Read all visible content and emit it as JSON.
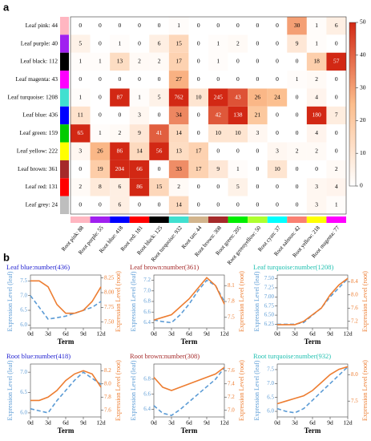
{
  "panel_labels": [
    "a",
    "b"
  ],
  "chart_data": [
    {
      "type": "heatmap",
      "rows": [
        "Leaf pink: 44",
        "Leaf purple: 40",
        "Leaf black: 112",
        "Leaf magenta: 43",
        "Leaf turquoise: 1208",
        "Leaf blue: 436",
        "Leaf green: 159",
        "Leaf yellow: 222",
        "Leaf brown: 361",
        "Leaf red: 131",
        "Leaf grey: 24"
      ],
      "row_colors": [
        "#ffb6c1",
        "#a020f0",
        "#000000",
        "#ff00ff",
        "#40e0d0",
        "#0000ff",
        "#00cc00",
        "#ffff00",
        "#a52a2a",
        "#ff0000",
        "#bebebe"
      ],
      "columns": [
        "Root pink: 88",
        "Root purple: 55",
        "Root blue: 418",
        "Root red: 181",
        "Root black: 125",
        "Root turquoise: 932",
        "Root tan: 44",
        "Root brown: 308",
        "Root green: 205",
        "Root greenyellow: 50",
        "Root cyan: 37",
        "Root salmon: 42",
        "Root yellow: 218",
        "Root magenta: 77"
      ],
      "column_colors": [
        "#ffb6c1",
        "#a020f0",
        "#0000ff",
        "#ff0000",
        "#000000",
        "#40e0d0",
        "#d2b48c",
        "#a52a2a",
        "#00ee00",
        "#adff2f",
        "#00ffff",
        "#fa8072",
        "#ffff00",
        "#ff00ff"
      ],
      "values": [
        [
          0,
          0,
          0,
          0,
          0,
          1,
          0,
          0,
          0,
          0,
          0,
          30,
          1,
          6
        ],
        [
          5,
          0,
          1,
          0,
          6,
          15,
          0,
          1,
          2,
          0,
          0,
          9,
          1,
          0
        ],
        [
          1,
          1,
          13,
          2,
          2,
          17,
          0,
          1,
          0,
          0,
          0,
          0,
          18,
          57
        ],
        [
          0,
          0,
          0,
          0,
          0,
          27,
          0,
          0,
          0,
          0,
          0,
          1,
          2,
          0
        ],
        [
          1,
          0,
          87,
          1,
          5,
          762,
          10,
          245,
          43,
          26,
          24,
          0,
          4,
          0
        ],
        [
          11,
          0,
          0,
          3,
          0,
          34,
          0,
          42,
          138,
          21,
          0,
          0,
          180,
          7
        ],
        [
          65,
          1,
          2,
          9,
          41,
          14,
          0,
          10,
          10,
          3,
          0,
          0,
          4,
          0
        ],
        [
          3,
          26,
          86,
          14,
          56,
          13,
          17,
          0,
          0,
          0,
          3,
          2,
          2,
          0
        ],
        [
          0,
          19,
          204,
          66,
          0,
          33,
          17,
          9,
          1,
          0,
          10,
          0,
          0,
          2
        ],
        [
          2,
          8,
          6,
          86,
          15,
          2,
          0,
          0,
          5,
          0,
          0,
          0,
          3,
          4
        ],
        [
          0,
          0,
          6,
          0,
          0,
          14,
          0,
          0,
          0,
          0,
          0,
          0,
          3,
          1
        ]
      ],
      "colorbar_lim": [
        0,
        50
      ],
      "colorbar_ticks": [
        0,
        10,
        20,
        30,
        40,
        50
      ]
    },
    {
      "type": "line",
      "title": "Leaf blue:number(436)",
      "title_color": "#1f1fd0",
      "xlabel": "Term",
      "ylabel": "Expression Level (leaf)",
      "y2label": "Expression Level (root)",
      "x": [
        0,
        1.5,
        3,
        4.5,
        6,
        7.5,
        9,
        10.5,
        12
      ],
      "xlim": [
        0,
        12
      ],
      "xticks": [
        {
          "value": 0,
          "label": "0d"
        },
        {
          "value": 3,
          "label": "3d"
        },
        {
          "value": 6,
          "label": "6d"
        },
        {
          "value": 9,
          "label": "9d"
        },
        {
          "value": 12,
          "label": "12d"
        }
      ],
      "ylim": [
        5.9,
        7.7
      ],
      "yticks": [
        {
          "value": 6,
          "label": "6.0"
        },
        6.5,
        {
          "value": 7,
          "label": "7.0"
        },
        7.5
      ],
      "y2lim": [
        7.4,
        8.3
      ],
      "y2ticks": [
        {
          "value": 7.5,
          "label": "7.50"
        },
        7.75,
        {
          "value": 8,
          "label": "8.00"
        },
        8.25
      ],
      "series": [
        {
          "name": "leaf",
          "color": "#5b9bd5",
          "values": [
            7.0,
            6.6,
            6.2,
            6.25,
            6.3,
            6.4,
            6.5,
            6.6,
            6.8
          ]
        },
        {
          "name": "root",
          "color": "#ed7d31",
          "axis": "y2",
          "values": [
            8.2,
            8.2,
            8.1,
            7.8,
            7.65,
            7.65,
            7.7,
            7.85,
            8.1
          ]
        }
      ]
    },
    {
      "type": "line",
      "title": "Leaf brown:number(361)",
      "title_color": "#a52a2a",
      "xlabel": "Term",
      "ylabel": "Expression Level (leaf)",
      "y2label": "Expression Level (root)",
      "x": [
        0,
        1.5,
        3,
        4.5,
        6,
        7.5,
        9,
        10.5,
        12
      ],
      "xlim": [
        0,
        12
      ],
      "xticks": [
        {
          "value": 0,
          "label": "0d"
        },
        {
          "value": 3,
          "label": "3d"
        },
        {
          "value": 6,
          "label": "6d"
        },
        {
          "value": 9,
          "label": "9d"
        },
        {
          "value": 12,
          "label": "12d"
        }
      ],
      "ylim": [
        6.3,
        7.3
      ],
      "yticks": [
        6.4,
        6.6,
        6.8,
        {
          "value": 7,
          "label": "7.0"
        },
        7.2
      ],
      "y2lim": [
        7.3,
        8.3
      ],
      "y2ticks": [
        7.5,
        7.8,
        8.1
      ],
      "series": [
        {
          "name": "leaf",
          "color": "#5b9bd5",
          "values": [
            6.45,
            6.42,
            6.4,
            6.55,
            6.75,
            7.0,
            7.2,
            7.1,
            6.8
          ]
        },
        {
          "name": "root",
          "color": "#ed7d31",
          "axis": "y2",
          "values": [
            7.45,
            7.5,
            7.55,
            7.7,
            7.85,
            8.05,
            8.25,
            8.1,
            7.75
          ]
        }
      ]
    },
    {
      "type": "line",
      "title": "Leaf turquoise:number(1208)",
      "title_color": "#20c0b0",
      "xlabel": "Term",
      "ylabel": "Expression Level (leaf)",
      "y2label": "Expression Level (root)",
      "x": [
        0,
        1.5,
        3,
        4.5,
        6,
        7.5,
        9,
        10.5,
        12
      ],
      "xlim": [
        0,
        12
      ],
      "xticks": [
        {
          "value": 0,
          "label": "0d"
        },
        {
          "value": 3,
          "label": "3d"
        },
        {
          "value": 6,
          "label": "6d"
        },
        {
          "value": 9,
          "label": "9d"
        },
        {
          "value": 12,
          "label": "12d"
        }
      ],
      "ylim": [
        6.15,
        7.6
      ],
      "yticks": [
        6.25,
        {
          "value": 6.5,
          "label": "6.50"
        },
        6.75,
        {
          "value": 7,
          "label": "7.00"
        },
        7.25,
        {
          "value": 7.5,
          "label": "7.50"
        }
      ],
      "y2lim": [
        7.0,
        8.6
      ],
      "y2ticks": [
        7.2,
        7.6,
        {
          "value": 8,
          "label": "8.0"
        },
        8.4
      ],
      "series": [
        {
          "name": "leaf",
          "color": "#5b9bd5",
          "values": [
            6.25,
            6.25,
            6.25,
            6.3,
            6.5,
            6.7,
            7.0,
            7.25,
            7.5
          ]
        },
        {
          "name": "root",
          "color": "#ed7d31",
          "axis": "y2",
          "values": [
            7.1,
            7.1,
            7.1,
            7.2,
            7.4,
            7.6,
            8.0,
            8.3,
            8.5
          ]
        }
      ]
    },
    {
      "type": "line",
      "title": "Root blue:number(418)",
      "title_color": "#1f1fd0",
      "xlabel": "Term",
      "ylabel": "Expression Level (leaf)",
      "y2label": "Expression Level (root)",
      "x": [
        0,
        1.5,
        3,
        4.5,
        6,
        7.5,
        9,
        10.5,
        12
      ],
      "xlim": [
        0,
        12
      ],
      "xticks": [
        {
          "value": 0,
          "label": "0d"
        },
        {
          "value": 3,
          "label": "3d"
        },
        {
          "value": 6,
          "label": "6d"
        },
        {
          "value": 9,
          "label": "9d"
        },
        {
          "value": 12,
          "label": "12d"
        }
      ],
      "ylim": [
        5.9,
        7.2
      ],
      "yticks": [
        {
          "value": 6,
          "label": "6.0"
        },
        6.5,
        {
          "value": 7,
          "label": "7.0"
        }
      ],
      "y2lim": [
        7.5,
        8.3
      ],
      "y2ticks": [
        7.6,
        7.8,
        {
          "value": 8,
          "label": "8.0"
        },
        8.2
      ],
      "series": [
        {
          "name": "leaf",
          "color": "#5b9bd5",
          "values": [
            6.1,
            6.05,
            6.0,
            6.3,
            6.55,
            6.8,
            7.0,
            6.85,
            6.7
          ]
        },
        {
          "name": "root",
          "color": "#ed7d31",
          "axis": "y2",
          "values": [
            7.75,
            7.75,
            7.8,
            7.9,
            8.05,
            8.15,
            8.2,
            8.15,
            7.95
          ]
        }
      ]
    },
    {
      "type": "line",
      "title": "Root brown:number(308)",
      "title_color": "#a52a2a",
      "xlabel": "Term",
      "ylabel": "Expression Level (leaf)",
      "y2label": "Expression Level (root)",
      "x": [
        0,
        1.5,
        3,
        4.5,
        6,
        7.5,
        9,
        10.5,
        12
      ],
      "xlim": [
        0,
        12
      ],
      "xticks": [
        {
          "value": 0,
          "label": "0d"
        },
        {
          "value": 3,
          "label": "3d"
        },
        {
          "value": 6,
          "label": "6d"
        },
        {
          "value": 9,
          "label": "9d"
        },
        {
          "value": 12,
          "label": "12d"
        }
      ],
      "ylim": [
        6.3,
        7.0
      ],
      "yticks": [
        6.4,
        6.6,
        6.8
      ],
      "y2lim": [
        6.9,
        7.7
      ],
      "y2ticks": [
        {
          "value": 7,
          "label": "7.0"
        },
        7.2,
        7.4,
        7.6
      ],
      "series": [
        {
          "name": "leaf",
          "color": "#5b9bd5",
          "values": [
            6.45,
            6.35,
            6.32,
            6.4,
            6.5,
            6.6,
            6.7,
            6.8,
            6.95
          ]
        },
        {
          "name": "root",
          "color": "#ed7d31",
          "axis": "y2",
          "values": [
            7.5,
            7.35,
            7.3,
            7.35,
            7.4,
            7.45,
            7.5,
            7.55,
            7.65
          ]
        }
      ]
    },
    {
      "type": "line",
      "title": "Root turquoise:number(932)",
      "title_color": "#20c0b0",
      "xlabel": "Term",
      "ylabel": "Expression Level (leaf)",
      "y2label": "Expression Level (root)",
      "x": [
        0,
        1.5,
        3,
        4.5,
        6,
        7.5,
        9,
        10.5,
        12
      ],
      "xlim": [
        0,
        12
      ],
      "xticks": [
        {
          "value": 0,
          "label": "0d"
        },
        {
          "value": 3,
          "label": "3d"
        },
        {
          "value": 6,
          "label": "6d"
        },
        {
          "value": 9,
          "label": "9d"
        },
        {
          "value": 12,
          "label": "12d"
        }
      ],
      "ylim": [
        5.8,
        7.7
      ],
      "yticks": [
        {
          "value": 6,
          "label": "6.0"
        },
        6.5,
        {
          "value": 7,
          "label": "7.0"
        },
        7.5
      ],
      "y2lim": [
        7.2,
        8.2
      ],
      "y2ticks": [
        7.5,
        {
          "value": 8,
          "label": "8.0"
        }
      ],
      "series": [
        {
          "name": "leaf",
          "color": "#5b9bd5",
          "values": [
            6.1,
            6.0,
            5.95,
            6.1,
            6.4,
            6.7,
            7.0,
            7.3,
            7.6
          ]
        },
        {
          "name": "root",
          "color": "#ed7d31",
          "axis": "y2",
          "values": [
            7.45,
            7.5,
            7.55,
            7.6,
            7.7,
            7.85,
            8.0,
            8.1,
            8.15
          ]
        }
      ]
    }
  ]
}
